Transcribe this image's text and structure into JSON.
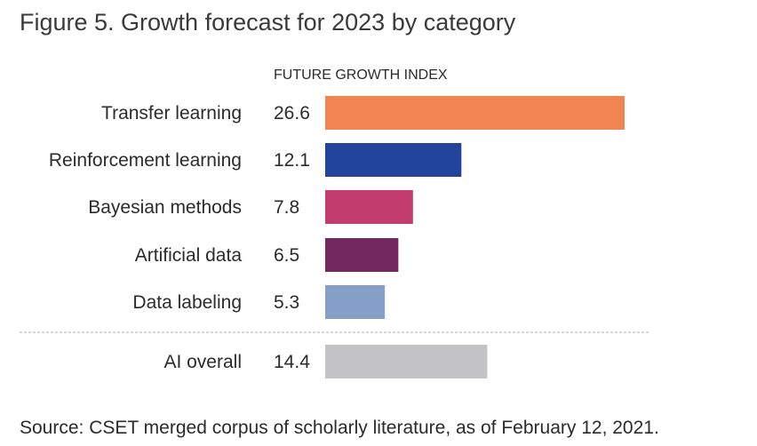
{
  "title": "Figure 5. Growth forecast for 2023 by category",
  "source": "Source: CSET merged corpus of scholarly literature, as of February 12, 2021.",
  "chart_data": {
    "type": "bar",
    "orientation": "horizontal",
    "title": "Figure 5. Growth forecast for 2023 by category",
    "column_header": "FUTURE GROWTH INDEX",
    "xlabel": "",
    "ylabel": "",
    "xlim": [
      0,
      26.6
    ],
    "grid": false,
    "categories": [
      "Transfer learning",
      "Reinforcement learning",
      "Bayesian methods",
      "Artificial data",
      "Data labeling",
      "AI overall"
    ],
    "values": [
      26.6,
      12.1,
      7.8,
      6.5,
      5.3,
      14.4
    ],
    "value_labels": [
      "26.6",
      "12.1",
      "7.8",
      "6.5",
      "5.3",
      "14.4"
    ],
    "colors": [
      "#f08552",
      "#22459b",
      "#c23d6e",
      "#73295f",
      "#859fc8",
      "#c4c4c7"
    ],
    "separator_color": "#d6d6d6",
    "separator_before": "AI overall"
  }
}
